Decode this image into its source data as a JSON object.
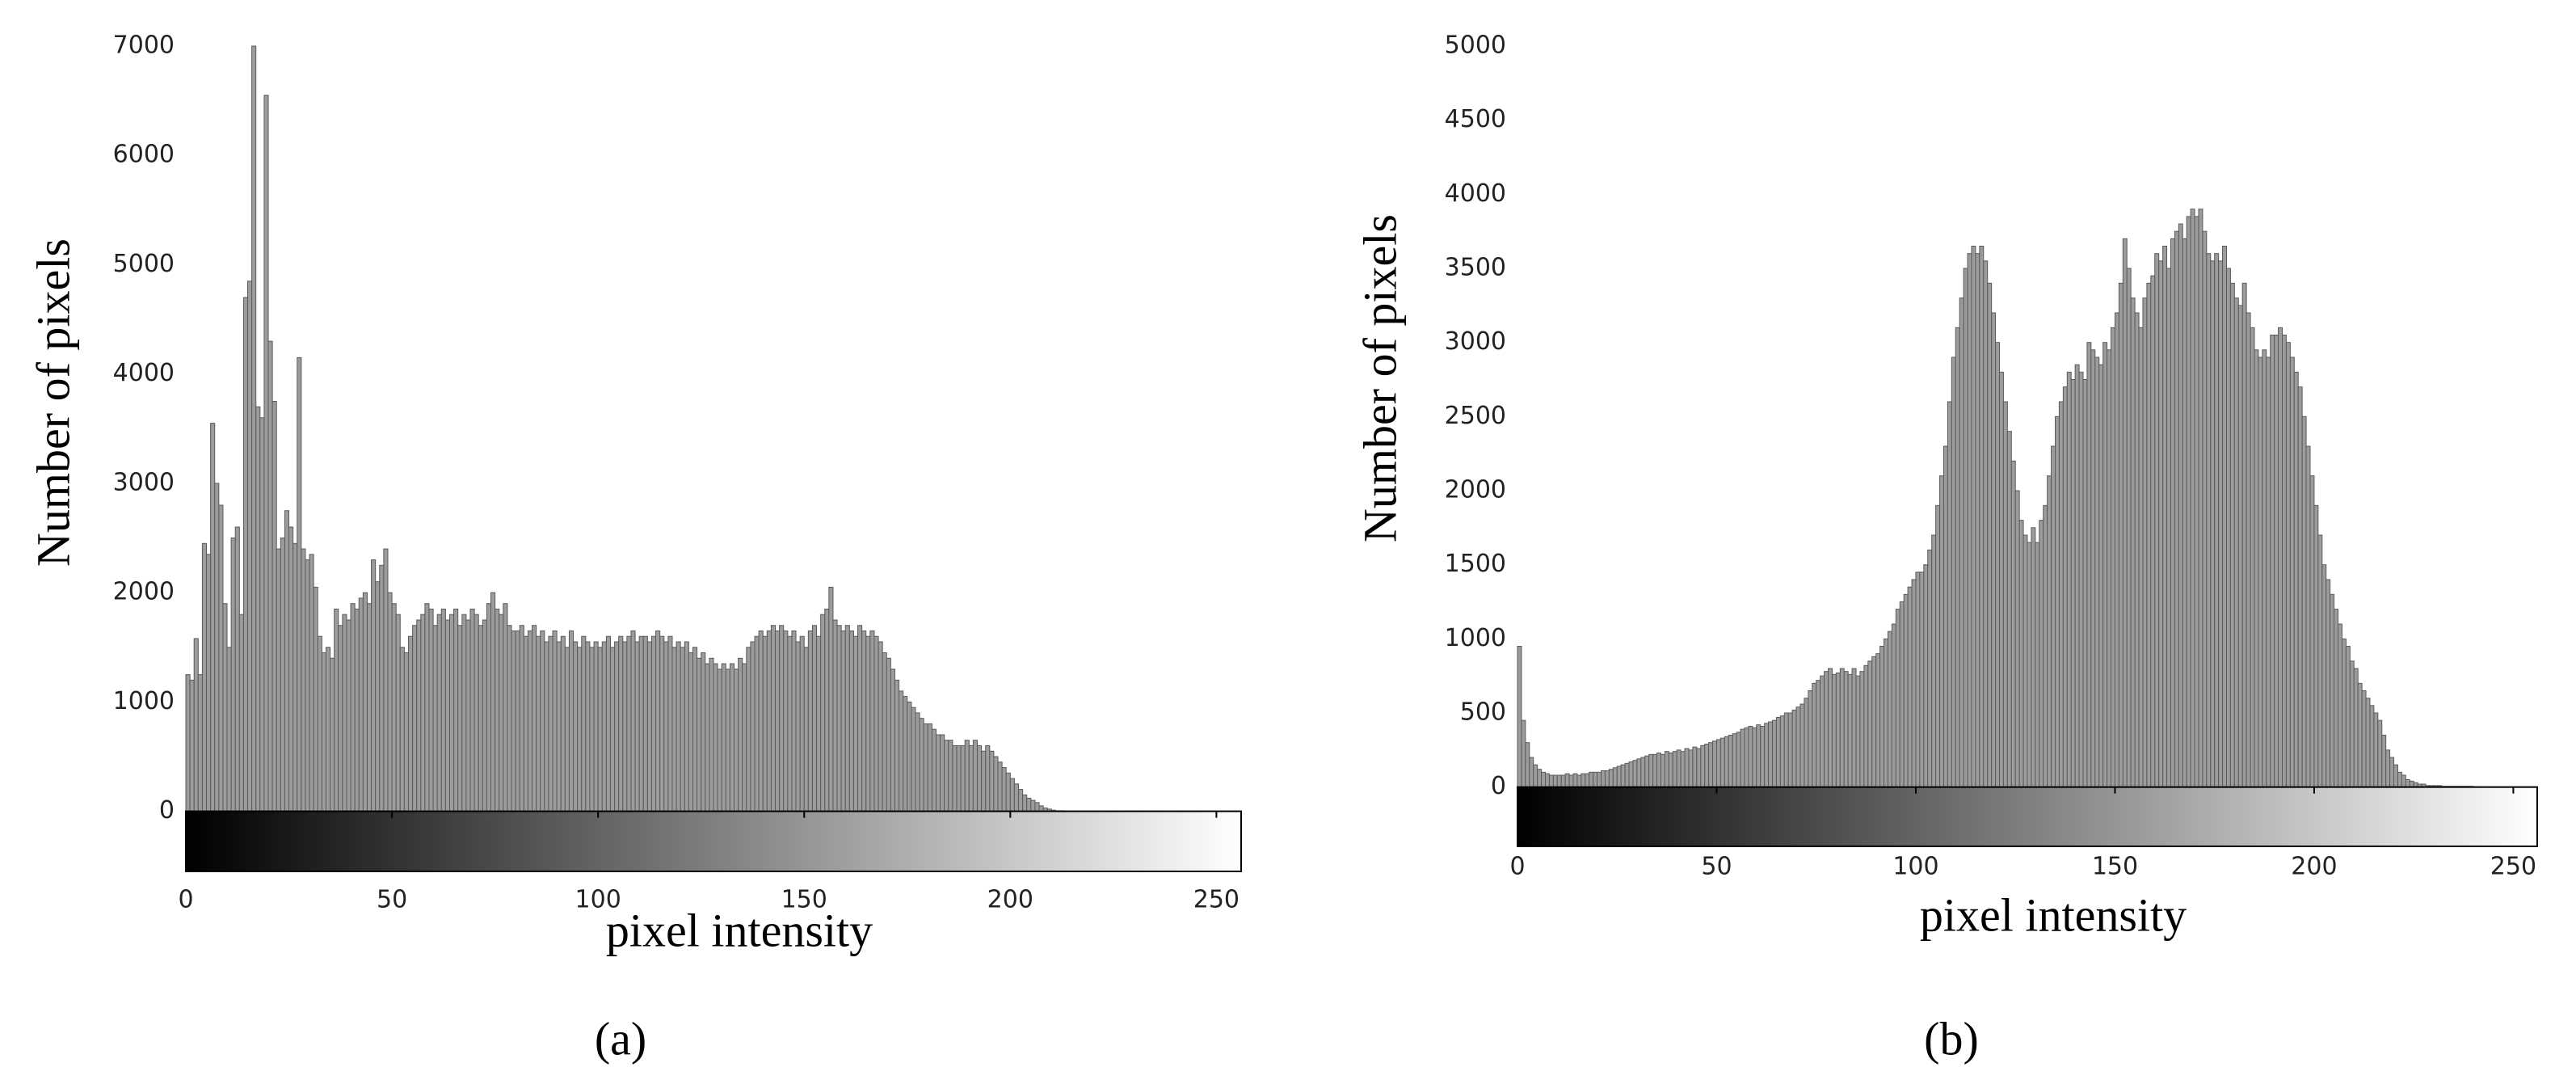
{
  "chart_data": [
    {
      "type": "histogram",
      "caption": "(a)",
      "xlabel": "pixel intensity",
      "ylabel": "Number of pixels",
      "color": "#9c9c9c",
      "bins": [
        0,
        1,
        2,
        3,
        4,
        5,
        6,
        7,
        8,
        9,
        10,
        11,
        12,
        13,
        14,
        15,
        16,
        17,
        18,
        19,
        20,
        21,
        22,
        23,
        24,
        25,
        26,
        27,
        28,
        29,
        30,
        31,
        32,
        33,
        34,
        35,
        36,
        37,
        38,
        39,
        40,
        41,
        42,
        43,
        44,
        45,
        46,
        47,
        48,
        49,
        50,
        51,
        52,
        53,
        54,
        55,
        56,
        57,
        58,
        59,
        60,
        61,
        62,
        63,
        64,
        65,
        66,
        67,
        68,
        69,
        70,
        71,
        72,
        73,
        74,
        75,
        76,
        77,
        78,
        79,
        80,
        81,
        82,
        83,
        84,
        85,
        86,
        87,
        88,
        89,
        90,
        91,
        92,
        93,
        94,
        95,
        96,
        97,
        98,
        99,
        100,
        101,
        102,
        103,
        104,
        105,
        106,
        107,
        108,
        109,
        110,
        111,
        112,
        113,
        114,
        115,
        116,
        117,
        118,
        119,
        120,
        121,
        122,
        123,
        124,
        125,
        126,
        127,
        128,
        129,
        130,
        131,
        132,
        133,
        134,
        135,
        136,
        137,
        138,
        139,
        140,
        141,
        142,
        143,
        144,
        145,
        146,
        147,
        148,
        149,
        150,
        151,
        152,
        153,
        154,
        155,
        156,
        157,
        158,
        159,
        160,
        161,
        162,
        163,
        164,
        165,
        166,
        167,
        168,
        169,
        170,
        171,
        172,
        173,
        174,
        175,
        176,
        177,
        178,
        179,
        180,
        181,
        182,
        183,
        184,
        185,
        186,
        187,
        188,
        189,
        190,
        191,
        192,
        193,
        194,
        195,
        196,
        197,
        198,
        199,
        200,
        201,
        202,
        203,
        204,
        205,
        206,
        207,
        208,
        209,
        210,
        211,
        212,
        213,
        214,
        215,
        216,
        217,
        218,
        219,
        220,
        221,
        222,
        223,
        224,
        225,
        226,
        227,
        228,
        229,
        230,
        231,
        232,
        233,
        234,
        235,
        236,
        237,
        238,
        239,
        240,
        241,
        242,
        243,
        244,
        245,
        246,
        247,
        248,
        249,
        250,
        251,
        252,
        253,
        254,
        255,
        256
      ],
      "counts": [
        1250,
        1200,
        1580,
        1250,
        2450,
        2350,
        3550,
        3000,
        2800,
        1900,
        1500,
        2500,
        2600,
        1800,
        4700,
        4850,
        7000,
        3700,
        3600,
        6550,
        4300,
        3750,
        2400,
        2500,
        2750,
        2600,
        2450,
        4150,
        2400,
        2300,
        2350,
        2050,
        1600,
        1450,
        1500,
        1400,
        1850,
        1700,
        1800,
        1750,
        1900,
        1850,
        1950,
        2000,
        1900,
        2300,
        2100,
        2250,
        2400,
        2000,
        1900,
        1800,
        1500,
        1450,
        1600,
        1700,
        1750,
        1800,
        1900,
        1850,
        1700,
        1800,
        1850,
        1750,
        1800,
        1850,
        1700,
        1800,
        1750,
        1850,
        1800,
        1700,
        1750,
        1900,
        2000,
        1850,
        1800,
        1900,
        1700,
        1650,
        1650,
        1700,
        1600,
        1650,
        1700,
        1600,
        1650,
        1550,
        1600,
        1650,
        1550,
        1600,
        1500,
        1650,
        1550,
        1500,
        1600,
        1550,
        1500,
        1550,
        1500,
        1550,
        1600,
        1500,
        1550,
        1600,
        1550,
        1600,
        1650,
        1550,
        1600,
        1600,
        1550,
        1600,
        1650,
        1600,
        1550,
        1600,
        1500,
        1550,
        1500,
        1550,
        1450,
        1500,
        1400,
        1450,
        1350,
        1400,
        1350,
        1300,
        1350,
        1300,
        1350,
        1300,
        1400,
        1350,
        1500,
        1550,
        1600,
        1650,
        1600,
        1650,
        1700,
        1650,
        1700,
        1650,
        1600,
        1650,
        1550,
        1600,
        1500,
        1650,
        1700,
        1600,
        1800,
        1850,
        2050,
        1750,
        1700,
        1650,
        1700,
        1650,
        1600,
        1700,
        1650,
        1600,
        1650,
        1600,
        1550,
        1450,
        1400,
        1300,
        1200,
        1100,
        1050,
        1000,
        950,
        900,
        850,
        800,
        800,
        750,
        700,
        700,
        650,
        650,
        600,
        600,
        600,
        650,
        600,
        650,
        600,
        550,
        600,
        550,
        500,
        450,
        400,
        350,
        300,
        250,
        200,
        150,
        120,
        100,
        80,
        50,
        30,
        20,
        10,
        5,
        5,
        0,
        0,
        0,
        0,
        0,
        0,
        0,
        0,
        0,
        0,
        0,
        0,
        0,
        0,
        0,
        0,
        0,
        0,
        0,
        0,
        0,
        0,
        0,
        0,
        0,
        0,
        0,
        0,
        0,
        0,
        0,
        0,
        0,
        0,
        0,
        0,
        0,
        0,
        0,
        0,
        0,
        0,
        0
      ],
      "xlim": [
        0,
        256
      ],
      "xticks": [
        0,
        50,
        100,
        150,
        200,
        250
      ],
      "ylim": [
        -550,
        7000
      ],
      "yticks": [
        0,
        1000,
        2000,
        3000,
        4000,
        5000,
        6000,
        7000
      ]
    },
    {
      "type": "histogram",
      "caption": "(b)",
      "xlabel": "pixel intensity",
      "ylabel": "Number of pixels",
      "color": "#9c9c9c",
      "bins": [
        0,
        1,
        2,
        3,
        4,
        5,
        6,
        7,
        8,
        9,
        10,
        11,
        12,
        13,
        14,
        15,
        16,
        17,
        18,
        19,
        20,
        21,
        22,
        23,
        24,
        25,
        26,
        27,
        28,
        29,
        30,
        31,
        32,
        33,
        34,
        35,
        36,
        37,
        38,
        39,
        40,
        41,
        42,
        43,
        44,
        45,
        46,
        47,
        48,
        49,
        50,
        51,
        52,
        53,
        54,
        55,
        56,
        57,
        58,
        59,
        60,
        61,
        62,
        63,
        64,
        65,
        66,
        67,
        68,
        69,
        70,
        71,
        72,
        73,
        74,
        75,
        76,
        77,
        78,
        79,
        80,
        81,
        82,
        83,
        84,
        85,
        86,
        87,
        88,
        89,
        90,
        91,
        92,
        93,
        94,
        95,
        96,
        97,
        98,
        99,
        100,
        101,
        102,
        103,
        104,
        105,
        106,
        107,
        108,
        109,
        110,
        111,
        112,
        113,
        114,
        115,
        116,
        117,
        118,
        119,
        120,
        121,
        122,
        123,
        124,
        125,
        126,
        127,
        128,
        129,
        130,
        131,
        132,
        133,
        134,
        135,
        136,
        137,
        138,
        139,
        140,
        141,
        142,
        143,
        144,
        145,
        146,
        147,
        148,
        149,
        150,
        151,
        152,
        153,
        154,
        155,
        156,
        157,
        158,
        159,
        160,
        161,
        162,
        163,
        164,
        165,
        166,
        167,
        168,
        169,
        170,
        171,
        172,
        173,
        174,
        175,
        176,
        177,
        178,
        179,
        180,
        181,
        182,
        183,
        184,
        185,
        186,
        187,
        188,
        189,
        190,
        191,
        192,
        193,
        194,
        195,
        196,
        197,
        198,
        199,
        200,
        201,
        202,
        203,
        204,
        205,
        206,
        207,
        208,
        209,
        210,
        211,
        212,
        213,
        214,
        215,
        216,
        217,
        218,
        219,
        220,
        221,
        222,
        223,
        224,
        225,
        226,
        227,
        228,
        229,
        230,
        231,
        232,
        233,
        234,
        235,
        236,
        237,
        238,
        239,
        240,
        241,
        242,
        243,
        244,
        245,
        246,
        247,
        248,
        249,
        250,
        251,
        252,
        253,
        254,
        255,
        256
      ],
      "counts": [
        950,
        450,
        300,
        200,
        150,
        120,
        100,
        90,
        80,
        80,
        80,
        80,
        90,
        80,
        90,
        80,
        90,
        90,
        100,
        100,
        100,
        110,
        110,
        120,
        130,
        140,
        150,
        160,
        170,
        180,
        190,
        200,
        210,
        220,
        220,
        230,
        220,
        240,
        230,
        240,
        250,
        240,
        260,
        250,
        270,
        260,
        280,
        290,
        300,
        310,
        320,
        330,
        340,
        350,
        360,
        370,
        390,
        400,
        410,
        400,
        420,
        410,
        430,
        440,
        450,
        470,
        480,
        500,
        500,
        520,
        540,
        560,
        600,
        650,
        700,
        720,
        750,
        780,
        800,
        760,
        770,
        800,
        780,
        760,
        800,
        750,
        780,
        820,
        850,
        880,
        900,
        950,
        1000,
        1050,
        1100,
        1200,
        1250,
        1300,
        1350,
        1400,
        1450,
        1450,
        1500,
        1600,
        1700,
        1900,
        2100,
        2300,
        2600,
        2900,
        3100,
        3300,
        3500,
        3600,
        3650,
        3600,
        3650,
        3550,
        3400,
        3200,
        3000,
        2800,
        2600,
        2400,
        2200,
        2000,
        1800,
        1700,
        1650,
        1750,
        1650,
        1800,
        1900,
        2100,
        2300,
        2500,
        2600,
        2700,
        2800,
        2750,
        2850,
        2800,
        2750,
        3000,
        2950,
        2900,
        2850,
        3000,
        2950,
        3100,
        3200,
        3400,
        3700,
        3500,
        3300,
        3200,
        3100,
        3300,
        3400,
        3450,
        3600,
        3550,
        3650,
        3500,
        3700,
        3750,
        3800,
        3700,
        3850,
        3900,
        3850,
        3900,
        3750,
        3600,
        3550,
        3600,
        3550,
        3650,
        3500,
        3400,
        3300,
        3250,
        3400,
        3200,
        3100,
        2950,
        2900,
        2950,
        2900,
        3050,
        3050,
        3100,
        3050,
        3000,
        2900,
        2800,
        2700,
        2500,
        2300,
        2100,
        1900,
        1700,
        1500,
        1400,
        1300,
        1200,
        1100,
        1000,
        950,
        850,
        800,
        700,
        650,
        600,
        550,
        500,
        450,
        350,
        250,
        200,
        150,
        100,
        80,
        50,
        40,
        30,
        20,
        20,
        10,
        10,
        10,
        10,
        5,
        5,
        5,
        5,
        5,
        5,
        5,
        5,
        0,
        0,
        0,
        0,
        0,
        0,
        0,
        0,
        0,
        0,
        0,
        0,
        0,
        0,
        0,
        0
      ],
      "xlim": [
        0,
        256
      ],
      "xticks": [
        0,
        50,
        100,
        150,
        200,
        250
      ],
      "ylim": [
        -400,
        5000
      ],
      "yticks": [
        0,
        500,
        1000,
        1500,
        2000,
        2500,
        3000,
        3500,
        4000,
        4500,
        5000
      ]
    }
  ]
}
